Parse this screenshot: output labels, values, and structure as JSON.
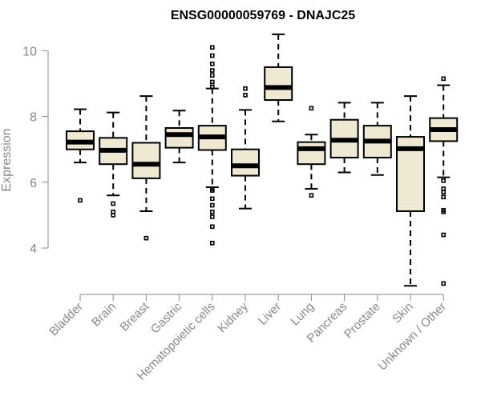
{
  "chart_data": {
    "type": "boxplot",
    "title": "ENSG00000059769 - DNAJC25",
    "xlabel": "",
    "ylabel": "Expression",
    "ylim": [
      2.8,
      10.8
    ],
    "yticks": [
      4,
      6,
      8,
      10
    ],
    "categories": [
      "Bladder",
      "Brain",
      "Breast",
      "Gastric",
      "Hematopoietic cells",
      "Kidney",
      "Liver",
      "Lung",
      "Pancreas",
      "Prostate",
      "Skin",
      "Unknown / Other"
    ],
    "boxes": [
      {
        "name": "Bladder",
        "min": 6.6,
        "q1": 7.0,
        "median": 7.22,
        "q3": 7.55,
        "max": 8.22,
        "outliers": [
          5.45
        ]
      },
      {
        "name": "Brain",
        "min": 5.6,
        "q1": 6.55,
        "median": 6.97,
        "q3": 7.35,
        "max": 8.12,
        "outliers": [
          5.35,
          5.1,
          5.0
        ]
      },
      {
        "name": "Breast",
        "min": 5.12,
        "q1": 6.12,
        "median": 6.55,
        "q3": 7.2,
        "max": 8.62,
        "outliers": [
          4.3
        ]
      },
      {
        "name": "Gastric",
        "min": 6.6,
        "q1": 7.05,
        "median": 7.45,
        "q3": 7.65,
        "max": 8.18,
        "outliers": []
      },
      {
        "name": "Hematopoietic cells",
        "min": 5.85,
        "q1": 6.98,
        "median": 7.38,
        "q3": 7.72,
        "max": 8.85,
        "outliers": [
          10.1,
          9.85,
          9.6,
          9.4,
          9.25,
          9.05,
          8.9,
          5.8,
          5.75,
          5.5,
          5.3,
          5.1,
          4.95,
          4.65,
          4.15
        ]
      },
      {
        "name": "Kidney",
        "min": 5.2,
        "q1": 6.2,
        "median": 6.5,
        "q3": 7.0,
        "max": 8.2,
        "outliers": [
          8.85,
          8.65
        ]
      },
      {
        "name": "Liver",
        "min": 7.85,
        "q1": 8.5,
        "median": 8.88,
        "q3": 9.5,
        "max": 10.5,
        "outliers": []
      },
      {
        "name": "Lung",
        "min": 5.8,
        "q1": 6.55,
        "median": 7.02,
        "q3": 7.22,
        "max": 7.45,
        "outliers": [
          8.25,
          5.6
        ]
      },
      {
        "name": "Pancreas",
        "min": 6.3,
        "q1": 6.75,
        "median": 7.28,
        "q3": 7.9,
        "max": 8.42,
        "outliers": []
      },
      {
        "name": "Prostate",
        "min": 6.22,
        "q1": 6.75,
        "median": 7.25,
        "q3": 7.72,
        "max": 8.42,
        "outliers": []
      },
      {
        "name": "Skin",
        "min": 2.85,
        "q1": 5.12,
        "median": 7.02,
        "q3": 7.38,
        "max": 8.62,
        "outliers": []
      },
      {
        "name": "Unknown / Other",
        "min": 6.15,
        "q1": 7.25,
        "median": 7.6,
        "q3": 7.95,
        "max": 8.95,
        "outliers": [
          9.15,
          6.05,
          5.8,
          5.7,
          5.55,
          5.15,
          5.1,
          4.4,
          2.92
        ]
      }
    ],
    "grid": false,
    "legend": "none"
  }
}
